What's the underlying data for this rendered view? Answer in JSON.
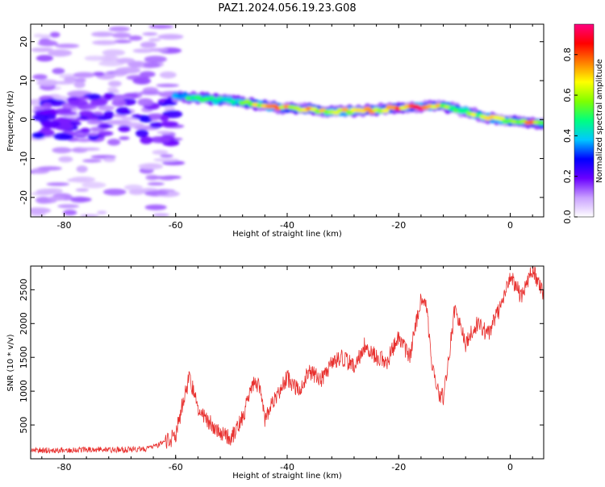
{
  "title": "PAZ1.2024.056.19.23.G08",
  "chart_data": [
    {
      "type": "heatmap",
      "xlabel": "Height of straight line (km)",
      "ylabel": "Frequency (Hz)",
      "xlim": [
        -86,
        6
      ],
      "ylim": [
        -25,
        24.5
      ],
      "x_ticks": [
        -80,
        -60,
        -40,
        -20,
        0
      ],
      "y_ticks": [
        -20,
        -10,
        0,
        10,
        20
      ],
      "colorbar": {
        "label": "Normalized spectral amplitude",
        "range": [
          0,
          0.95
        ],
        "ticks": [
          0.0,
          0.2,
          0.4,
          0.6,
          0.8
        ],
        "colors": [
          "#ffffff",
          "#c9a0ff",
          "#6a00ff",
          "#0000ff",
          "#00c8ff",
          "#00ff80",
          "#80ff00",
          "#ffff00",
          "#ff8000",
          "#ff0000",
          "#ff0080"
        ]
      },
      "ridge_km": [
        -60,
        -56,
        -52,
        -48,
        -44,
        -40,
        -36,
        -32,
        -28,
        -24,
        -20,
        -16,
        -12,
        -8,
        -4,
        0,
        4,
        6
      ],
      "ridge_hz": [
        6,
        5.5,
        5,
        4.5,
        3.5,
        3,
        2.5,
        2,
        2.2,
        2.5,
        3,
        3.2,
        3.5,
        2,
        0.5,
        -0.5,
        -1,
        -1
      ],
      "ridge_amplitude": [
        0.45,
        0.5,
        0.45,
        0.55,
        0.7,
        0.75,
        0.7,
        0.65,
        0.7,
        0.75,
        0.85,
        0.9,
        0.6,
        0.55,
        0.7,
        0.6,
        0.8,
        0.5
      ],
      "noise_region_km": [
        -85,
        -60
      ],
      "noise_region_hz": [
        -25,
        24
      ]
    },
    {
      "type": "line",
      "xlabel": "Height of straight line (km)",
      "ylabel": "SNR (10 * v/v)",
      "xlim": [
        -86,
        6
      ],
      "ylim": [
        0,
        2850
      ],
      "x_ticks": [
        -80,
        -60,
        -40,
        -20,
        0
      ],
      "y_ticks": [
        500,
        1000,
        1500,
        2000,
        2500
      ],
      "series": [
        {
          "color": "#e8302e",
          "x": [
            -86,
            -80,
            -75,
            -70,
            -65,
            -62,
            -60,
            -58.5,
            -57.5,
            -56,
            -54,
            -52,
            -50,
            -48,
            -46,
            -45,
            -44,
            -42,
            -40,
            -38,
            -36,
            -34,
            -32,
            -30,
            -28,
            -26,
            -24,
            -22,
            -20,
            -18,
            -16,
            -15,
            -14,
            -13,
            -12,
            -11,
            -10,
            -8,
            -6,
            -4,
            -2,
            0,
            2,
            4,
            6
          ],
          "y": [
            120,
            130,
            140,
            130,
            150,
            230,
            350,
            900,
            1200,
            750,
            550,
            400,
            300,
            600,
            1150,
            1050,
            600,
            900,
            1200,
            1000,
            1300,
            1150,
            1400,
            1500,
            1350,
            1700,
            1500,
            1450,
            1800,
            1500,
            2400,
            2200,
            1400,
            1000,
            900,
            1500,
            2200,
            1700,
            2000,
            1850,
            2200,
            2700,
            2400,
            2800,
            2450
          ]
        }
      ]
    }
  ]
}
